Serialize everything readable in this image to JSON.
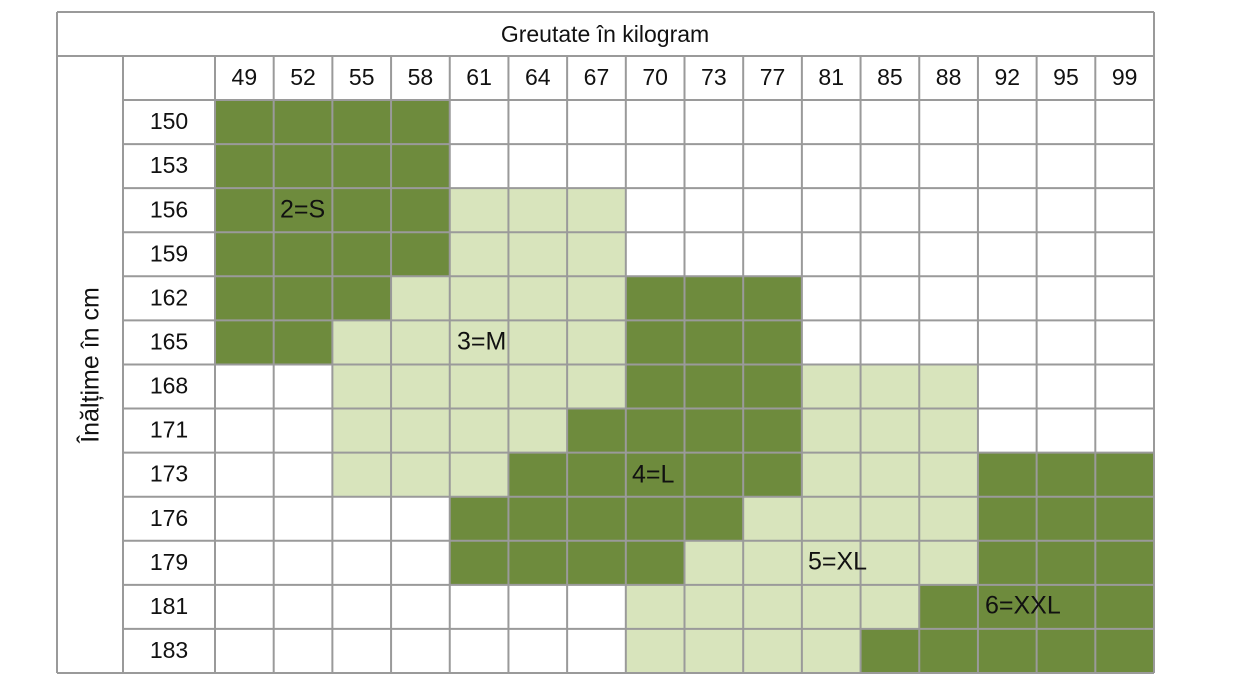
{
  "table": {
    "title": "Greutate în kilogram",
    "row_axis_label": "Înălțime în cm",
    "columns": [
      "49",
      "52",
      "55",
      "58",
      "61",
      "64",
      "67",
      "70",
      "73",
      "77",
      "81",
      "85",
      "88",
      "92",
      "95",
      "99"
    ],
    "rows": [
      "150",
      "153",
      "156",
      "159",
      "162",
      "165",
      "168",
      "171",
      "173",
      "176",
      "179",
      "181",
      "183"
    ],
    "size_labels": [
      "2=S",
      "3=M",
      "4=L",
      "5=XL",
      "6=XXL"
    ],
    "dark_color": "#6e8b3d",
    "light_color": "#d8e4bc",
    "border_color": "#9a9a9a"
  }
}
